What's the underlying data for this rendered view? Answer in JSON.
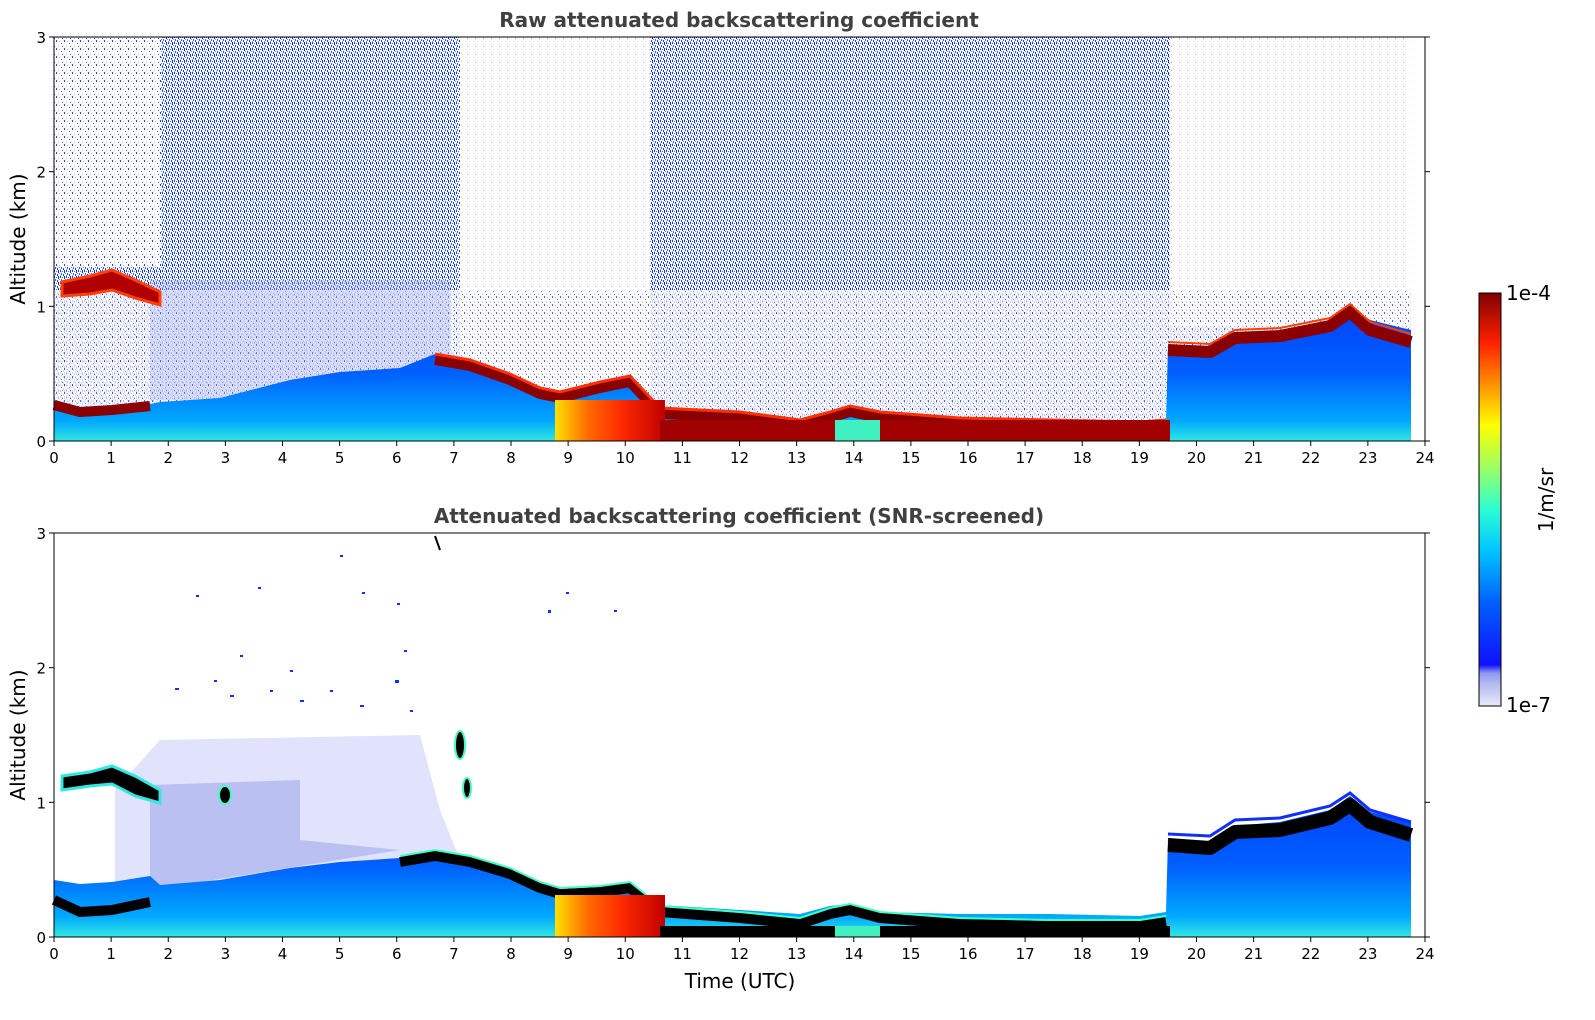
{
  "chart_data": [
    {
      "type": "heatmap",
      "title": "Raw attenuated backscattering coefficient",
      "xlabel": "",
      "ylabel": "Altitude (km)",
      "xlim": [
        0,
        24
      ],
      "ylim": [
        0,
        3
      ],
      "xticks": [
        "0",
        "1",
        "2",
        "3",
        "4",
        "5",
        "6",
        "7",
        "8",
        "9",
        "10",
        "11",
        "12",
        "13",
        "14",
        "15",
        "16",
        "17",
        "18",
        "19",
        "20",
        "21",
        "22",
        "23",
        "24"
      ],
      "yticks": [
        "0",
        "1",
        "2",
        "3"
      ],
      "data_end_hour": 23.75,
      "boundary_layer_top_km": {
        "x": [
          0,
          0.5,
          1,
          1.8,
          2,
          3,
          4,
          5,
          6,
          6.8,
          7.5,
          8,
          8.5,
          9,
          9.5,
          10,
          10.5,
          11,
          12,
          13,
          13.5,
          14,
          14.5,
          15,
          16,
          17,
          18,
          19,
          19.5,
          20,
          20.5,
          21,
          21.5,
          22,
          22.5,
          23,
          23.5,
          23.75
        ],
        "y": [
          0.3,
          0.25,
          0.28,
          0.3,
          0.28,
          0.3,
          0.4,
          0.5,
          0.5,
          0.6,
          0.55,
          0.45,
          0.35,
          0.35,
          0.4,
          0.45,
          0.3,
          0.25,
          0.2,
          0.15,
          0.2,
          0.22,
          0.18,
          0.15,
          0.14,
          0.13,
          0.14,
          0.12,
          0.65,
          0.65,
          0.65,
          0.75,
          0.72,
          0.78,
          0.88,
          0.85,
          0.72,
          0.78
        ]
      },
      "cloud_layer": {
        "x": [
          0.1,
          1.8
        ],
        "y": [
          1.2,
          1.05
        ]
      }
    },
    {
      "type": "heatmap",
      "title": "Attenuated backscattering coefficient (SNR-screened)",
      "xlabel": "Time (UTC)",
      "ylabel": "Altitude (km)",
      "xlim": [
        0,
        24
      ],
      "ylim": [
        0,
        3
      ],
      "xticks": [
        "0",
        "1",
        "2",
        "3",
        "4",
        "5",
        "6",
        "7",
        "8",
        "9",
        "10",
        "11",
        "12",
        "13",
        "14",
        "15",
        "16",
        "17",
        "18",
        "19",
        "20",
        "21",
        "22",
        "23",
        "24"
      ],
      "yticks": [
        "0",
        "1",
        "2",
        "3"
      ],
      "data_end_hour": 23.75
    }
  ],
  "colorbar": {
    "label": "1/m/sr",
    "max_label": "1e-4",
    "min_label": "1e-7",
    "colors": [
      "#e8eaf8",
      "#c6caf2",
      "#9ea6ee",
      "#0000ff",
      "#0050ff",
      "#00a0ff",
      "#00e0ff",
      "#40ffc0",
      "#a0ff60",
      "#ffff00",
      "#ffb000",
      "#ff5000",
      "#e00000",
      "#800000"
    ]
  }
}
